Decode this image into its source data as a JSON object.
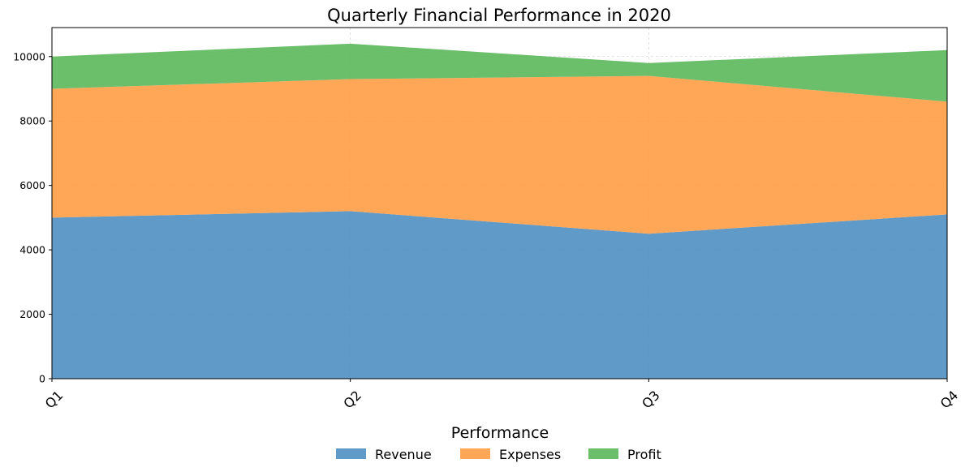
{
  "chart_data": {
    "type": "area",
    "stacked": true,
    "title": "Quarterly Financial Performance in 2020",
    "xlabel": "",
    "ylabel": "",
    "categories": [
      "Q1",
      "Q2",
      "Q3",
      "Q4"
    ],
    "ylim": [
      0,
      10900
    ],
    "yticks": [
      0,
      2000,
      4000,
      6000,
      8000,
      10000
    ],
    "grid": true,
    "legend": {
      "title": "Performance",
      "placement": "bottom-center"
    },
    "series": [
      {
        "name": "Revenue",
        "values": [
          5000,
          5200,
          4500,
          5100
        ],
        "color": "#4f8fc2"
      },
      {
        "name": "Expenses",
        "values": [
          4000,
          4100,
          4900,
          3500
        ],
        "color": "#ff9d45"
      },
      {
        "name": "Profit",
        "values": [
          1000,
          1100,
          400,
          1600
        ],
        "color": "#5bb85b"
      }
    ]
  }
}
